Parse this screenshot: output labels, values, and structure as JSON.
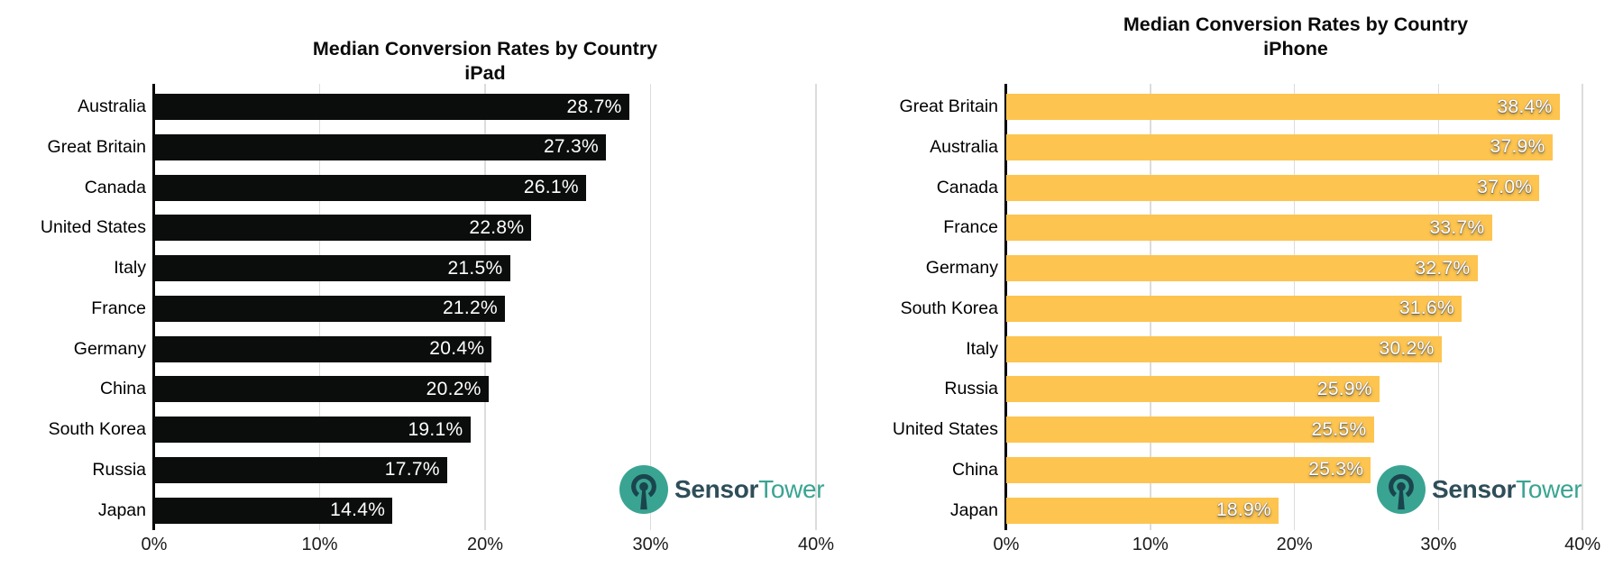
{
  "watermark": {
    "brand_bold": "Sensor",
    "brand_light": "Tower"
  },
  "colors": {
    "ipad_bar": "#0b0c0c",
    "iphone_bar": "#fdc44f",
    "grid": "#dcdcdc",
    "axis": "#000000",
    "value_text": "#ffffff",
    "logo_teal": "#3aa492",
    "logo_dark": "#1a454e",
    "logo_text_dark": "#2e4e59"
  },
  "chart_data": [
    {
      "type": "bar",
      "orientation": "horizontal",
      "title": "Median Conversion Rates by Country",
      "subtitle": "iPad",
      "categories": [
        "Australia",
        "Great Britain",
        "Canada",
        "United States",
        "Italy",
        "France",
        "Germany",
        "China",
        "South Korea",
        "Russia",
        "Japan"
      ],
      "values": [
        28.7,
        27.3,
        26.1,
        22.8,
        21.5,
        21.2,
        20.4,
        20.2,
        19.1,
        17.7,
        14.4
      ],
      "value_label_format": "percent_one_decimal",
      "xlim": [
        0,
        40
      ],
      "xtick_labels": [
        "0%",
        "10%",
        "20%",
        "30%",
        "40%"
      ],
      "grid": true,
      "bar_color": "#0b0c0c",
      "value_label_shadow": false,
      "legend": "none"
    },
    {
      "type": "bar",
      "orientation": "horizontal",
      "title": "Median Conversion Rates by Country",
      "subtitle": "iPhone",
      "categories": [
        "Great Britain",
        "Australia",
        "Canada",
        "France",
        "Germany",
        "South Korea",
        "Italy",
        "Russia",
        "United States",
        "China",
        "Japan"
      ],
      "values": [
        38.4,
        37.9,
        37.0,
        33.7,
        32.7,
        31.6,
        30.2,
        25.9,
        25.5,
        25.3,
        18.9
      ],
      "value_label_format": "percent_one_decimal",
      "xlim": [
        0,
        40
      ],
      "xtick_labels": [
        "0%",
        "10%",
        "20%",
        "30%",
        "40%"
      ],
      "grid": true,
      "bar_color": "#fdc44f",
      "value_label_shadow": true,
      "legend": "none"
    }
  ]
}
